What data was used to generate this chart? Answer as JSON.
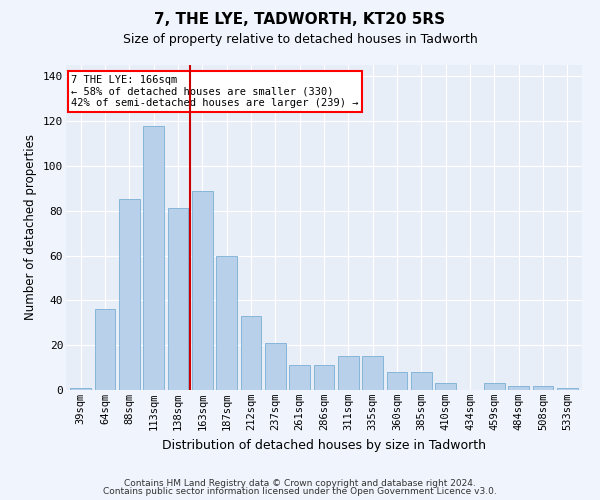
{
  "title": "7, THE LYE, TADWORTH, KT20 5RS",
  "subtitle": "Size of property relative to detached houses in Tadworth",
  "xlabel": "Distribution of detached houses by size in Tadworth",
  "ylabel": "Number of detached properties",
  "bar_color": "#b8d0ea",
  "bar_edge_color": "#7aafd4",
  "background_color": "#e8eef8",
  "grid_color": "#ffffff",
  "fig_background": "#f0f4fc",
  "categories": [
    "39sqm",
    "64sqm",
    "88sqm",
    "113sqm",
    "138sqm",
    "163sqm",
    "187sqm",
    "212sqm",
    "237sqm",
    "261sqm",
    "286sqm",
    "311sqm",
    "335sqm",
    "360sqm",
    "385sqm",
    "410sqm",
    "434sqm",
    "459sqm",
    "484sqm",
    "508sqm",
    "533sqm"
  ],
  "values": [
    1,
    36,
    85,
    118,
    81,
    89,
    60,
    33,
    21,
    11,
    11,
    15,
    15,
    8,
    8,
    3,
    0,
    3,
    2,
    2,
    1
  ],
  "vline_x": 5,
  "vline_color": "#cc0000",
  "annotation_line1": "7 THE LYE: 166sqm",
  "annotation_line2": "← 58% of detached houses are smaller (330)",
  "annotation_line3": "42% of semi-detached houses are larger (239) →",
  "ylim": [
    0,
    145
  ],
  "yticks": [
    0,
    20,
    40,
    60,
    80,
    100,
    120,
    140
  ],
  "footnote1": "Contains HM Land Registry data © Crown copyright and database right 2024.",
  "footnote2": "Contains public sector information licensed under the Open Government Licence v3.0."
}
